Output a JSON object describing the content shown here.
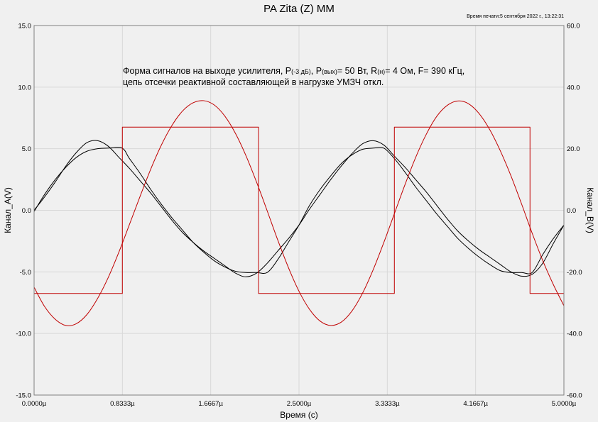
{
  "title": "PA Zita (Z) MM",
  "print_time": "Время печати:5 сентября 2022 г., 13:22:31",
  "annotation": {
    "line1_a": "Форма сигналов на выходе усилителя, P",
    "line1_b": "(-3 дБ)",
    "line1_c": ", P",
    "line1_d": "(вых)",
    "line1_e": "= 50 Вт, R",
    "line1_f": "(н)",
    "line1_g": "= 4 Ом, F= 390 кГц,",
    "line2": "цепь отсечки реактивной составляющей в нагрузке УМЗЧ откл."
  },
  "chart_data": {
    "type": "line",
    "xlabel": "Время (c)",
    "ylabel_left": "Канал_A(V)",
    "ylabel_right": "Канал_B(V)",
    "xlim": [
      0,
      5
    ],
    "ylim_left": [
      -15,
      15
    ],
    "ylim_right": [
      -60,
      60
    ],
    "x_ticks": [
      "0.0000µ",
      "0.8333µ",
      "1.6667µ",
      "2.5000µ",
      "3.3333µ",
      "4.1667µ",
      "5.0000µ"
    ],
    "y_left_ticks": [
      "15.0",
      "10.0",
      "5.0",
      "0.0",
      "-5.0",
      "-10.0",
      "-15.0"
    ],
    "y_right_ticks": [
      "60.0",
      "40.0",
      "20.0",
      "0.0",
      "-20.0",
      "-40.0",
      "-60.0"
    ],
    "grid": true,
    "colors": {
      "black": "#000000",
      "red": "#c00000",
      "grid": "#d8d8d8"
    },
    "series": [
      {
        "axis": "left",
        "color": "#000000",
        "shape": "clipped-sine",
        "x": [
          0,
          0.1,
          0.2,
          0.3,
          0.4,
          0.5,
          0.6,
          0.7,
          0.83,
          0.9,
          1.0,
          1.1,
          1.2,
          1.3,
          1.4,
          1.5,
          1.6,
          1.7,
          1.8,
          1.9,
          2.0,
          2.1,
          2.2,
          2.3,
          2.4,
          2.5,
          2.6,
          2.7,
          2.8,
          2.9,
          3.0,
          3.1,
          3.2,
          3.3,
          3.4,
          3.5,
          3.6,
          3.7,
          3.8,
          3.9,
          4.0,
          4.1,
          4.2,
          4.3,
          4.4,
          4.5,
          4.6,
          4.7,
          4.8,
          4.9,
          5.0
        ],
        "y": [
          -0.1,
          1.3,
          2.5,
          3.5,
          4.3,
          4.8,
          5.0,
          5.05,
          5.05,
          4.2,
          3.0,
          1.7,
          0.5,
          -0.6,
          -1.6,
          -2.6,
          -3.4,
          -4.1,
          -4.6,
          -4.95,
          -5.05,
          -5.05,
          -5.05,
          -4.0,
          -2.6,
          -1.2,
          0.4,
          1.7,
          2.8,
          3.8,
          4.5,
          4.95,
          5.05,
          5.05,
          4.2,
          3.1,
          1.9,
          0.8,
          -0.3,
          -1.3,
          -2.3,
          -3.1,
          -3.8,
          -4.4,
          -4.9,
          -5.05,
          -5.05,
          -5.05,
          -3.6,
          -2.3,
          -1.2
        ]
      },
      {
        "axis": "left",
        "color": "#000000",
        "shape": "distorted-sine",
        "x": [
          0,
          0.1,
          0.2,
          0.3,
          0.4,
          0.5,
          0.6,
          0.7,
          0.8,
          0.9,
          1.0,
          1.1,
          1.2,
          1.3,
          1.4,
          1.5,
          1.6,
          1.7,
          1.8,
          1.9,
          2.0,
          2.1,
          2.2,
          2.3,
          2.4,
          2.5,
          2.6,
          2.7,
          2.8,
          2.9,
          3.0,
          3.1,
          3.2,
          3.3,
          3.4,
          3.5,
          3.6,
          3.7,
          3.8,
          3.9,
          4.0,
          4.1,
          4.2,
          4.3,
          4.4,
          4.5,
          4.6,
          4.7,
          4.8,
          4.9,
          5.0
        ],
        "y": [
          0.0,
          1.1,
          2.3,
          3.6,
          4.7,
          5.5,
          5.65,
          5.2,
          4.3,
          3.4,
          2.4,
          1.4,
          0.3,
          -0.8,
          -1.8,
          -2.6,
          -3.3,
          -3.9,
          -4.5,
          -5.1,
          -5.4,
          -5.1,
          -4.3,
          -3.3,
          -2.3,
          -1.2,
          0.1,
          1.3,
          2.5,
          3.6,
          4.6,
          5.4,
          5.65,
          5.3,
          4.4,
          3.5,
          2.5,
          1.5,
          0.4,
          -0.7,
          -1.7,
          -2.5,
          -3.2,
          -3.8,
          -4.4,
          -5.0,
          -5.35,
          -5.2,
          -4.3,
          -2.7,
          -1.2
        ]
      },
      {
        "axis": "right",
        "color": "#c00000",
        "shape": "sine",
        "x": [
          0,
          0.1,
          0.2,
          0.3,
          0.4,
          0.5,
          0.6,
          0.7,
          0.8,
          0.9,
          1.0,
          1.1,
          1.2,
          1.3,
          1.4,
          1.5,
          1.6,
          1.7,
          1.8,
          1.9,
          2.0,
          2.1,
          2.2,
          2.3,
          2.4,
          2.5,
          2.6,
          2.7,
          2.8,
          2.9,
          3.0,
          3.1,
          3.2,
          3.3,
          3.4,
          3.5,
          3.6,
          3.7,
          3.8,
          3.9,
          4.0,
          4.1,
          4.2,
          4.3,
          4.4,
          4.5,
          4.6,
          4.7,
          4.8,
          4.9,
          5.0
        ],
        "y": [
          -25.0,
          -31.3,
          -35.4,
          -37.4,
          -36.8,
          -33.8,
          -28.6,
          -21.8,
          -13.6,
          -4.6,
          4.5,
          13.3,
          21.1,
          27.5,
          32.2,
          34.9,
          35.6,
          34.2,
          30.6,
          25.0,
          17.7,
          9.1,
          -0.2,
          -9.7,
          -18.6,
          -26.3,
          -32.2,
          -36.0,
          -37.4,
          -36.3,
          -32.7,
          -26.9,
          -19.3,
          -10.5,
          -1.1,
          8.3,
          17.1,
          24.6,
          30.5,
          34.1,
          35.5,
          34.6,
          31.4,
          26.2,
          19.3,
          11.2,
          2.1,
          -7.4,
          -16.3,
          -24.1,
          -31.0
        ]
      },
      {
        "axis": "right",
        "color": "#c00000",
        "shape": "square",
        "x": [
          0,
          0.833,
          0.833,
          2.118,
          2.118,
          3.4,
          3.4,
          4.68,
          4.68,
          5.0
        ],
        "y": [
          -27.0,
          -27.0,
          27.0,
          27.0,
          -27.0,
          -27.0,
          27.0,
          27.0,
          -27.0,
          -27.0
        ]
      }
    ]
  }
}
